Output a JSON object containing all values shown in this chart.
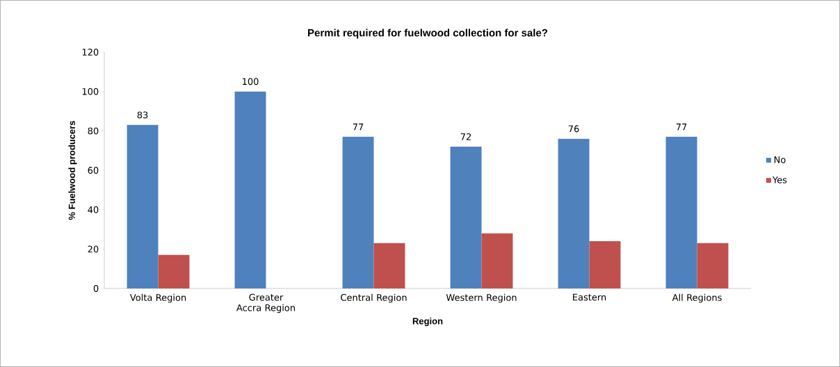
{
  "chart_data": {
    "type": "bar",
    "title": "Permit required for fuelwood collection for sale?",
    "xlabel": "Region",
    "ylabel": "% Fuelwood producers",
    "categories": [
      "Volta Region",
      "Greater Accra Region",
      "Central Region",
      "Western Region",
      "Eastern",
      "All Regions"
    ],
    "series": [
      {
        "name": "No",
        "color": "#4f81bd",
        "values": [
          83,
          100,
          77,
          72,
          76,
          77
        ],
        "value_labels": [
          "83",
          "100",
          "77",
          "72",
          "76",
          "77"
        ]
      },
      {
        "name": "Yes",
        "color": "#c0504d",
        "values": [
          17,
          0,
          23,
          28,
          24,
          23
        ]
      }
    ],
    "ylim": [
      0,
      120
    ],
    "yticks": [
      0,
      20,
      40,
      60,
      80,
      100,
      120
    ],
    "legend": "right"
  }
}
